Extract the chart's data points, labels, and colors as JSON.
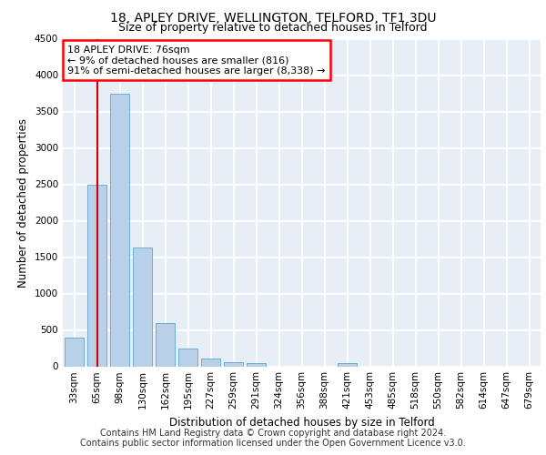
{
  "title_line1": "18, APLEY DRIVE, WELLINGTON, TELFORD, TF1 3DU",
  "title_line2": "Size of property relative to detached houses in Telford",
  "xlabel": "Distribution of detached houses by size in Telford",
  "ylabel": "Number of detached properties",
  "categories": [
    "33sqm",
    "65sqm",
    "98sqm",
    "130sqm",
    "162sqm",
    "195sqm",
    "227sqm",
    "259sqm",
    "291sqm",
    "324sqm",
    "356sqm",
    "388sqm",
    "421sqm",
    "453sqm",
    "485sqm",
    "518sqm",
    "550sqm",
    "582sqm",
    "614sqm",
    "647sqm",
    "679sqm"
  ],
  "values": [
    390,
    2500,
    3750,
    1630,
    590,
    245,
    110,
    60,
    45,
    0,
    0,
    0,
    50,
    0,
    0,
    0,
    0,
    0,
    0,
    0,
    0
  ],
  "bar_color": "#b8d0e8",
  "bar_edge_color": "#6aaed6",
  "property_line_x": 1.0,
  "annotation_text": "18 APLEY DRIVE: 76sqm\n← 9% of detached houses are smaller (816)\n91% of semi-detached houses are larger (8,338) →",
  "annotation_box_color": "white",
  "annotation_box_edge_color": "red",
  "vline_color": "#cc0000",
  "ylim": [
    0,
    4500
  ],
  "yticks": [
    0,
    500,
    1000,
    1500,
    2000,
    2500,
    3000,
    3500,
    4000,
    4500
  ],
  "footer_line1": "Contains HM Land Registry data © Crown copyright and database right 2024.",
  "footer_line2": "Contains public sector information licensed under the Open Government Licence v3.0.",
  "background_color": "#e8eef6",
  "grid_color": "white",
  "title_fontsize": 10,
  "subtitle_fontsize": 9,
  "axis_label_fontsize": 8.5,
  "tick_fontsize": 7.5,
  "annotation_fontsize": 8,
  "footer_fontsize": 7
}
